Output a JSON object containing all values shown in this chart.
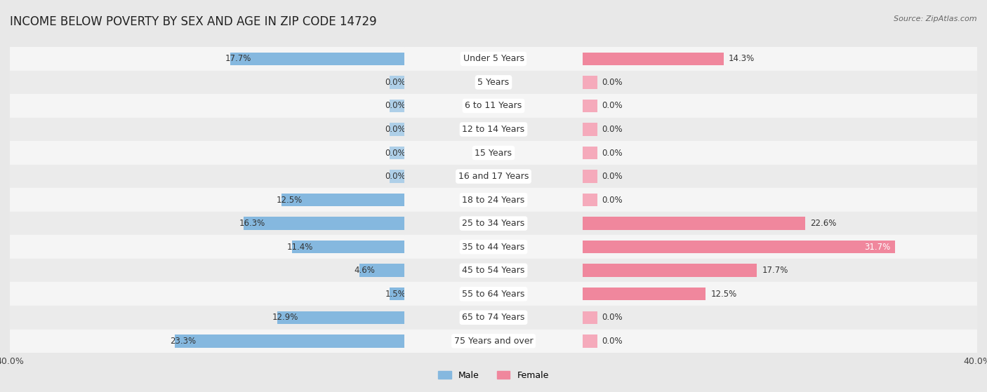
{
  "title": "INCOME BELOW POVERTY BY SEX AND AGE IN ZIP CODE 14729",
  "source": "Source: ZipAtlas.com",
  "categories": [
    "Under 5 Years",
    "5 Years",
    "6 to 11 Years",
    "12 to 14 Years",
    "15 Years",
    "16 and 17 Years",
    "18 to 24 Years",
    "25 to 34 Years",
    "35 to 44 Years",
    "45 to 54 Years",
    "55 to 64 Years",
    "65 to 74 Years",
    "75 Years and over"
  ],
  "male_values": [
    17.7,
    0.0,
    0.0,
    0.0,
    0.0,
    0.0,
    12.5,
    16.3,
    11.4,
    4.6,
    1.5,
    12.9,
    23.3
  ],
  "female_values": [
    14.3,
    0.0,
    0.0,
    0.0,
    0.0,
    0.0,
    0.0,
    22.6,
    31.7,
    17.7,
    12.5,
    0.0,
    0.0
  ],
  "male_color": "#85b8df",
  "female_color": "#f0879d",
  "male_color_light": "#aecfe8",
  "female_color_light": "#f5aabb",
  "male_label": "Male",
  "female_label": "Female",
  "xlim": 40.0,
  "min_bar": 1.5,
  "background_color": "#e8e8e8",
  "row_bg_even": "#f5f5f5",
  "row_bg_odd": "#ebebeb",
  "title_fontsize": 12,
  "label_fontsize": 9,
  "value_fontsize": 8.5,
  "cat_fontsize": 9
}
